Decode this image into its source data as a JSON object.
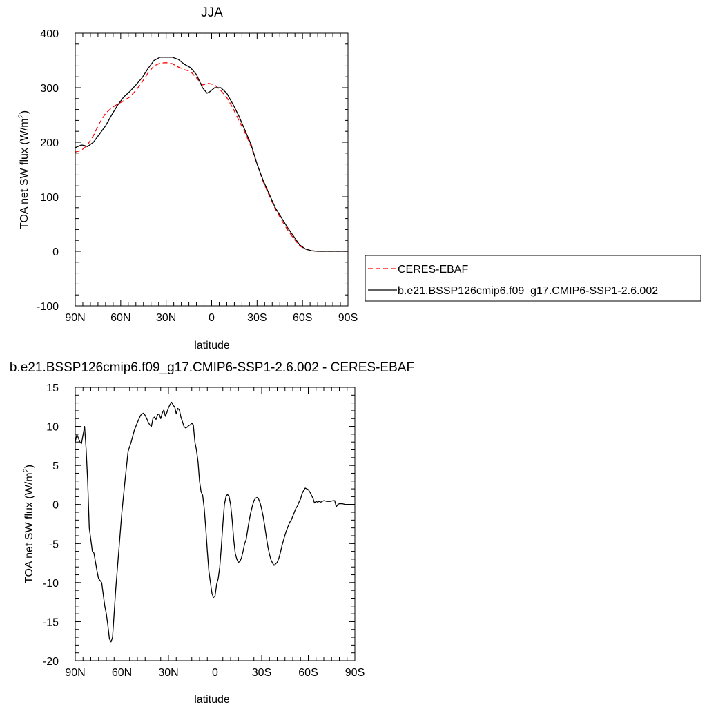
{
  "chart_data": [
    {
      "type": "line",
      "title": "JJA",
      "xlabel": "latitude",
      "ylabel": "TOA net SW flux (W/m",
      "ylabel_sup": "2",
      "ylabel_close": ")",
      "xlim": [
        90,
        -90
      ],
      "ylim": [
        -100,
        400
      ],
      "x_ticks": [
        90,
        60,
        30,
        0,
        -30,
        -60,
        -90
      ],
      "x_tick_labels": [
        "90N",
        "60N",
        "30N",
        "0",
        "30S",
        "60S",
        "90S"
      ],
      "y_ticks": [
        -100,
        0,
        100,
        200,
        300,
        400
      ],
      "y_tick_labels": [
        "-100",
        "0",
        "100",
        "200",
        "300",
        "400"
      ],
      "legend_position": "right",
      "series": [
        {
          "name": "CERES-EBAF",
          "color": "#ff0000",
          "dash": "dashed",
          "x": [
            90,
            86,
            82,
            78,
            74,
            70,
            66,
            62,
            58,
            54,
            50,
            46,
            42,
            38,
            34,
            30,
            26,
            22,
            18,
            14,
            10,
            6,
            2,
            -2,
            -6,
            -10,
            -14,
            -18,
            -22,
            -26,
            -30,
            -34,
            -38,
            -42,
            -46,
            -50,
            -54,
            -58,
            -62,
            -66,
            -70,
            -74,
            -78,
            -82,
            -86,
            -90
          ],
          "y": [
            182,
            185,
            195,
            212,
            235,
            253,
            263,
            270,
            276,
            283,
            295,
            310,
            327,
            340,
            345,
            346,
            344,
            338,
            333,
            330,
            318,
            305,
            308,
            305,
            295,
            282,
            263,
            240,
            218,
            192,
            160,
            128,
            102,
            78,
            58,
            40,
            24,
            10,
            4,
            1,
            0,
            0,
            0,
            0,
            0,
            0
          ]
        },
        {
          "name": "b.e21.BSSP126cmip6.f09_g17.CMIP6-SSP1-2.6.002",
          "color": "#000000",
          "dash": "solid",
          "x": [
            90,
            86,
            84,
            82,
            78,
            74,
            70,
            66,
            62,
            58,
            54,
            50,
            46,
            42,
            38,
            34,
            30,
            26,
            22,
            18,
            14,
            10,
            6,
            3,
            1,
            -2,
            -6,
            -10,
            -14,
            -18,
            -22,
            -26,
            -30,
            -34,
            -38,
            -42,
            -46,
            -50,
            -54,
            -58,
            -62,
            -66,
            -70,
            -74,
            -78,
            -82,
            -86,
            -90
          ],
          "y": [
            190,
            195,
            194,
            192,
            200,
            215,
            230,
            250,
            268,
            283,
            293,
            305,
            318,
            335,
            350,
            356,
            356,
            356,
            352,
            343,
            337,
            324,
            300,
            290,
            293,
            300,
            300,
            290,
            270,
            248,
            222,
            196,
            160,
            130,
            105,
            80,
            62,
            44,
            28,
            12,
            4,
            1,
            0,
            0,
            0,
            0,
            0,
            0
          ]
        }
      ]
    },
    {
      "type": "line",
      "title": "b.e21.BSSP126cmip6.f09_g17.CMIP6-SSP1-2.6.002 - CERES-EBAF",
      "xlabel": "latitude",
      "ylabel": "TOA net SW flux (W/m",
      "ylabel_sup": "2",
      "ylabel_close": ")",
      "xlim": [
        90,
        -90
      ],
      "ylim": [
        -20,
        15
      ],
      "x_ticks": [
        90,
        60,
        30,
        0,
        -30,
        -60,
        -90
      ],
      "x_tick_labels": [
        "90N",
        "60N",
        "30N",
        "0",
        "30S",
        "60S",
        "90S"
      ],
      "y_ticks": [
        -20,
        -15,
        -10,
        -5,
        0,
        5,
        10,
        15
      ],
      "y_tick_labels": [
        "-20",
        "-15",
        "-10",
        "-5",
        "0",
        "5",
        "10",
        "15"
      ],
      "series": [
        {
          "color": "#000000",
          "dash": "solid",
          "x": [
            90,
            89,
            87,
            86,
            84,
            83,
            82,
            81,
            79,
            78,
            76,
            75,
            73,
            72,
            71,
            70,
            69,
            68,
            67,
            66,
            65,
            64,
            62,
            60,
            58,
            56,
            54,
            52,
            50,
            48,
            47,
            46,
            45,
            44,
            43,
            42,
            41,
            40,
            39,
            38,
            37,
            36,
            35,
            34,
            33,
            32,
            31,
            30,
            29,
            28,
            27,
            26,
            25,
            24,
            23,
            22,
            21,
            20,
            19,
            18,
            17,
            16,
            15,
            14,
            13,
            12,
            11,
            10,
            9,
            8,
            7,
            6,
            5,
            4,
            3,
            2,
            1,
            0,
            -1,
            -2,
            -3,
            -4,
            -5,
            -6,
            -7,
            -8,
            -9,
            -10,
            -11,
            -12,
            -13,
            -14,
            -15,
            -16,
            -17,
            -18,
            -19,
            -20,
            -21,
            -22,
            -23,
            -24,
            -25,
            -26,
            -27,
            -28,
            -29,
            -30,
            -31,
            -32,
            -33,
            -34,
            -35,
            -36,
            -37,
            -38,
            -39,
            -40,
            -41,
            -42,
            -43,
            -44,
            -45,
            -46,
            -47,
            -48,
            -49,
            -50,
            -51,
            -52,
            -53,
            -54,
            -55,
            -56,
            -57,
            -58,
            -59,
            -60,
            -61,
            -62,
            -63,
            -64,
            -65,
            -66,
            -67,
            -68,
            -69,
            -70,
            -72,
            -74,
            -76,
            -77,
            -78,
            -79,
            -80,
            -82,
            -84,
            -86,
            -88,
            -90
          ],
          "y": [
            8,
            9,
            8,
            7.8,
            10,
            7,
            3,
            -3,
            -6,
            -6.2,
            -8.5,
            -9.5,
            -10,
            -11.5,
            -13,
            -14,
            -15.5,
            -17.2,
            -17.6,
            -17,
            -14,
            -11,
            -6,
            -1,
            3,
            6.8,
            8,
            9.5,
            10.5,
            11.4,
            11.6,
            11.7,
            11.4,
            11,
            10.5,
            10.2,
            10,
            11,
            11.2,
            10.9,
            11.5,
            11.6,
            11,
            11.7,
            12.1,
            11.3,
            11.8,
            12.4,
            12.8,
            13.1,
            12.7,
            12.5,
            11.6,
            12.3,
            12.1,
            11.2,
            10.6,
            10,
            9.8,
            9.9,
            10.1,
            10.2,
            10.4,
            10.2,
            8,
            7,
            5.5,
            3,
            1.6,
            1.2,
            -0.5,
            -3,
            -6,
            -8.5,
            -10,
            -11.4,
            -11.9,
            -11.7,
            -10.2,
            -9.5,
            -8,
            -5.5,
            -2.5,
            0,
            1,
            1.3,
            1,
            0,
            -2,
            -4.5,
            -6.3,
            -7,
            -7.4,
            -7.3,
            -6.8,
            -6,
            -5,
            -4.5,
            -3.2,
            -2,
            -1,
            -0.2,
            0.5,
            0.8,
            0.9,
            0.7,
            0.2,
            -0.6,
            -1.6,
            -2.8,
            -4.2,
            -5.4,
            -6.4,
            -7.1,
            -7.5,
            -7.8,
            -7.6,
            -7.4,
            -6.9,
            -6.2,
            -5.3,
            -4.6,
            -3.9,
            -3.3,
            -2.8,
            -2.3,
            -2,
            -1.5,
            -1,
            -0.5,
            -0.2,
            0.3,
            0.7,
            1.4,
            1.8,
            2.1,
            2,
            1.9,
            1.6,
            1.2,
            0.8,
            0.2,
            0.4,
            0.3,
            0.4,
            0.3,
            0.4,
            0.5,
            0.4,
            0.4,
            0.5,
            0.5,
            -0.3,
            0,
            0.1,
            0.1,
            0,
            0,
            0,
            0
          ]
        }
      ]
    }
  ]
}
